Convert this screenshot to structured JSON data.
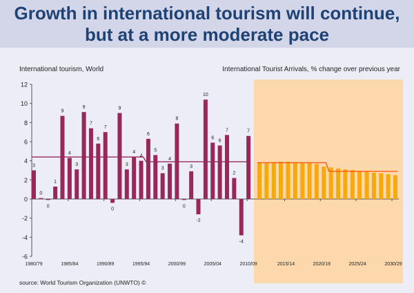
{
  "title_line1": "Growth in international tourism will continue,",
  "title_line2": "but at a more moderate pace",
  "source": "source: World Tourism Organization (UNWTO) ©",
  "colors": {
    "history_bar": "#96285a",
    "history_line": "#96285a",
    "forecast_bar": "#f9a500",
    "forecast_line": "#ff5a14",
    "forecast_shade": "#fdd8ac",
    "title": "#1f4274"
  },
  "chart_data": {
    "type": "bar",
    "left_title": "International tourism, World",
    "right_title": "International Tourist Arrivals, % change over previous year",
    "ylim": [
      -6,
      12
    ],
    "yticks": [
      "12",
      "10",
      "8",
      "6",
      "4",
      "2",
      "0",
      "-2",
      "-4",
      "-6"
    ],
    "xtick_labels": [
      "1980/79",
      "1985/84",
      "1990/89",
      "1995/94",
      "2000/99",
      "2005/04",
      "2010/09",
      "2015/14",
      "2020/19",
      "2025/24",
      "2030/29"
    ],
    "history": {
      "years": [
        1980,
        1981,
        1982,
        1983,
        1984,
        1985,
        1986,
        1987,
        1988,
        1989,
        1990,
        1991,
        1992,
        1993,
        1994,
        1995,
        1996,
        1997,
        1998,
        1999,
        2000,
        2001,
        2002,
        2003,
        2004,
        2005,
        2006,
        2007,
        2008,
        2009,
        2010
      ],
      "values": [
        3.0,
        0.1,
        -0.1,
        1.3,
        8.7,
        4.3,
        3.1,
        9.1,
        7.4,
        5.8,
        7.0,
        -0.4,
        9.0,
        3.1,
        4.4,
        4.0,
        6.3,
        4.6,
        2.7,
        3.7,
        7.9,
        -0.1,
        2.9,
        -1.6,
        10.4,
        5.9,
        5.6,
        6.7,
        2.2,
        -3.8,
        6.6
      ],
      "labels": [
        "3",
        "0",
        "0",
        "1",
        "9",
        "4",
        "3",
        "9",
        "7",
        "6",
        "7",
        "0",
        "9",
        "3",
        "4",
        "4",
        "6",
        "5",
        "3",
        "4",
        "8",
        "0",
        "3",
        "-2",
        "10",
        "6",
        "6",
        "7",
        "2",
        "-4",
        "7"
      ],
      "average_line": [
        {
          "from": 1980,
          "to": 1995,
          "value": 4.4
        },
        {
          "from": 1996,
          "to": 2010,
          "value": 3.9
        }
      ]
    },
    "forecast": {
      "years": [
        2011,
        2012,
        2013,
        2014,
        2015,
        2016,
        2017,
        2018,
        2019,
        2020,
        2021,
        2022,
        2023,
        2024,
        2025,
        2026,
        2027,
        2028,
        2029,
        2030
      ],
      "values": [
        3.8,
        3.8,
        3.86,
        3.9,
        3.9,
        3.86,
        3.82,
        3.8,
        3.66,
        3.4,
        3.3,
        3.2,
        3.1,
        3.04,
        2.9,
        2.9,
        2.75,
        2.7,
        2.6,
        2.5
      ],
      "average_line": [
        {
          "from": 2011,
          "to": 2020,
          "value": 3.8
        },
        {
          "from": 2021,
          "to": 2030,
          "value": 2.9
        }
      ]
    }
  }
}
